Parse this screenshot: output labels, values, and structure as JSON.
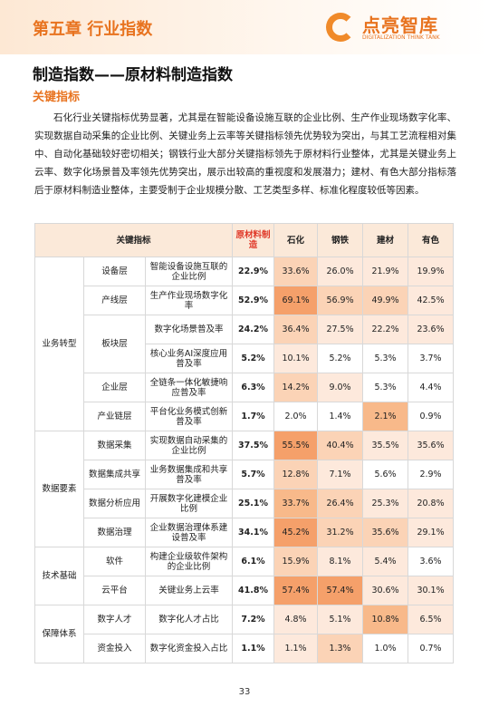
{
  "header": {
    "chapter": "第五章  行业指数",
    "logo_name": "点亮智库",
    "logo_sub": "DIGITALIZATION THINK TANK"
  },
  "title": "制造指数——原材料制造指数",
  "section": "关键指标",
  "paragraph": "石化行业关键指标优势显著，尤其是在智能设备设施互联的企业比例、生产作业现场数字化率、实现数据自动采集的企业比例、关键业务上云率等关键指标领先优势较为突出，与其工艺流程相对集中、自动化基础较好密切相关；钢铁行业大部分关键指标领先于原材料行业整体，尤其是关键业务上云率、数字化场景普及率领先优势突出，展示出较高的重视度和发展潜力；建材、有色大部分指标落后于原材料制造业整体，主要受制于企业规模分散、工艺类型多样、标准化程度较低等因素。",
  "table": {
    "columns": [
      "关键指标",
      "原材料制造",
      "石化",
      "钢铁",
      "建材",
      "有色"
    ],
    "groups": [
      {
        "name": "业务转型",
        "sublevels": [
          {
            "name": "设备层",
            "rows": [
              {
                "indicator": "智能设备设施互联的企业比例",
                "values": [
                  "22.9%",
                  "33.6%",
                  "26.0%",
                  "21.9%",
                  "19.9%"
                ]
              }
            ]
          },
          {
            "name": "产线层",
            "rows": [
              {
                "indicator": "生产作业现场数字化率",
                "values": [
                  "52.9%",
                  "69.1%",
                  "56.9%",
                  "49.9%",
                  "42.5%"
                ]
              }
            ]
          },
          {
            "name": "板块层",
            "rows": [
              {
                "indicator": "数字化场景普及率",
                "values": [
                  "24.2%",
                  "36.4%",
                  "27.5%",
                  "22.2%",
                  "23.6%"
                ]
              },
              {
                "indicator": "核心业务AI深度应用普及率",
                "values": [
                  "5.2%",
                  "10.1%",
                  "5.2%",
                  "5.3%",
                  "3.7%"
                ]
              }
            ]
          },
          {
            "name": "企业层",
            "rows": [
              {
                "indicator": "全链条一体化敏捷响应普及率",
                "values": [
                  "6.3%",
                  "14.2%",
                  "9.0%",
                  "5.3%",
                  "4.4%"
                ]
              }
            ]
          },
          {
            "name": "产业链层",
            "rows": [
              {
                "indicator": "平台化业务模式创新普及率",
                "values": [
                  "1.7%",
                  "2.0%",
                  "1.4%",
                  "2.1%",
                  "0.9%"
                ]
              }
            ]
          }
        ]
      },
      {
        "name": "数据要素",
        "sublevels": [
          {
            "name": "数据采集",
            "rows": [
              {
                "indicator": "实现数据自动采集的企业比例",
                "values": [
                  "37.5%",
                  "55.5%",
                  "40.4%",
                  "35.5%",
                  "35.6%"
                ]
              }
            ]
          },
          {
            "name": "数据集成共享",
            "rows": [
              {
                "indicator": "业务数据集成和共享普及率",
                "values": [
                  "5.7%",
                  "12.8%",
                  "7.1%",
                  "5.6%",
                  "2.9%"
                ]
              }
            ]
          },
          {
            "name": "数据分析应用",
            "rows": [
              {
                "indicator": "开展数字化建模企业比例",
                "values": [
                  "25.1%",
                  "33.7%",
                  "26.4%",
                  "25.3%",
                  "20.8%"
                ]
              }
            ]
          },
          {
            "name": "数据治理",
            "rows": [
              {
                "indicator": "企业数据治理体系建设普及率",
                "values": [
                  "34.1%",
                  "45.2%",
                  "31.2%",
                  "35.6%",
                  "29.1%"
                ]
              }
            ]
          }
        ]
      },
      {
        "name": "技术基础",
        "sublevels": [
          {
            "name": "软件",
            "rows": [
              {
                "indicator": "构建企业级软件架构的企业比例",
                "values": [
                  "6.1%",
                  "15.9%",
                  "8.1%",
                  "5.4%",
                  "3.6%"
                ]
              }
            ]
          },
          {
            "name": "云平台",
            "rows": [
              {
                "indicator": "关键业务上云率",
                "values": [
                  "41.8%",
                  "57.4%",
                  "57.4%",
                  "30.6%",
                  "30.1%"
                ]
              }
            ]
          }
        ]
      },
      {
        "name": "保障体系",
        "sublevels": [
          {
            "name": "数字人才",
            "rows": [
              {
                "indicator": "数字化人才占比",
                "values": [
                  "7.2%",
                  "4.8%",
                  "5.1%",
                  "10.8%",
                  "6.5%"
                ]
              }
            ]
          },
          {
            "name": "资金投入",
            "rows": [
              {
                "indicator": "数字化资金投入占比",
                "values": [
                  "1.1%",
                  "1.1%",
                  "1.3%",
                  "1.0%",
                  "0.7%"
                ]
              }
            ]
          }
        ]
      }
    ]
  },
  "page_number": "33"
}
